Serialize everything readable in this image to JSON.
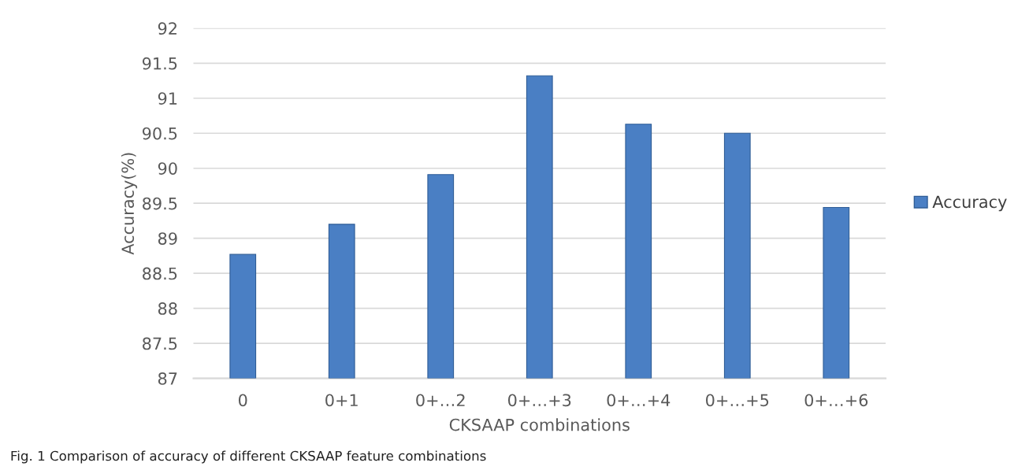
{
  "chart_data": {
    "type": "bar",
    "xlabel": "CKSAAP combinations",
    "ylabel": "Accuracy(%)",
    "categories": [
      "0",
      "0+1",
      "0+…2",
      "0+…+3",
      "0+…+4",
      "0+…+5",
      "0+…+6"
    ],
    "series": [
      {
        "name": "Accuracy",
        "color": "#4a7fc4",
        "values": [
          88.77,
          89.2,
          89.91,
          91.32,
          90.63,
          90.5,
          89.44
        ]
      }
    ],
    "ylim": [
      87,
      92
    ],
    "yticks": [
      87,
      87.5,
      88,
      88.5,
      89,
      89.5,
      90,
      90.5,
      91,
      91.5,
      92
    ],
    "grid": "y",
    "legend": "right",
    "annotations": [
      "Fig. 1 Comparison of accuracy of different CKSAAP feature combinations"
    ]
  }
}
